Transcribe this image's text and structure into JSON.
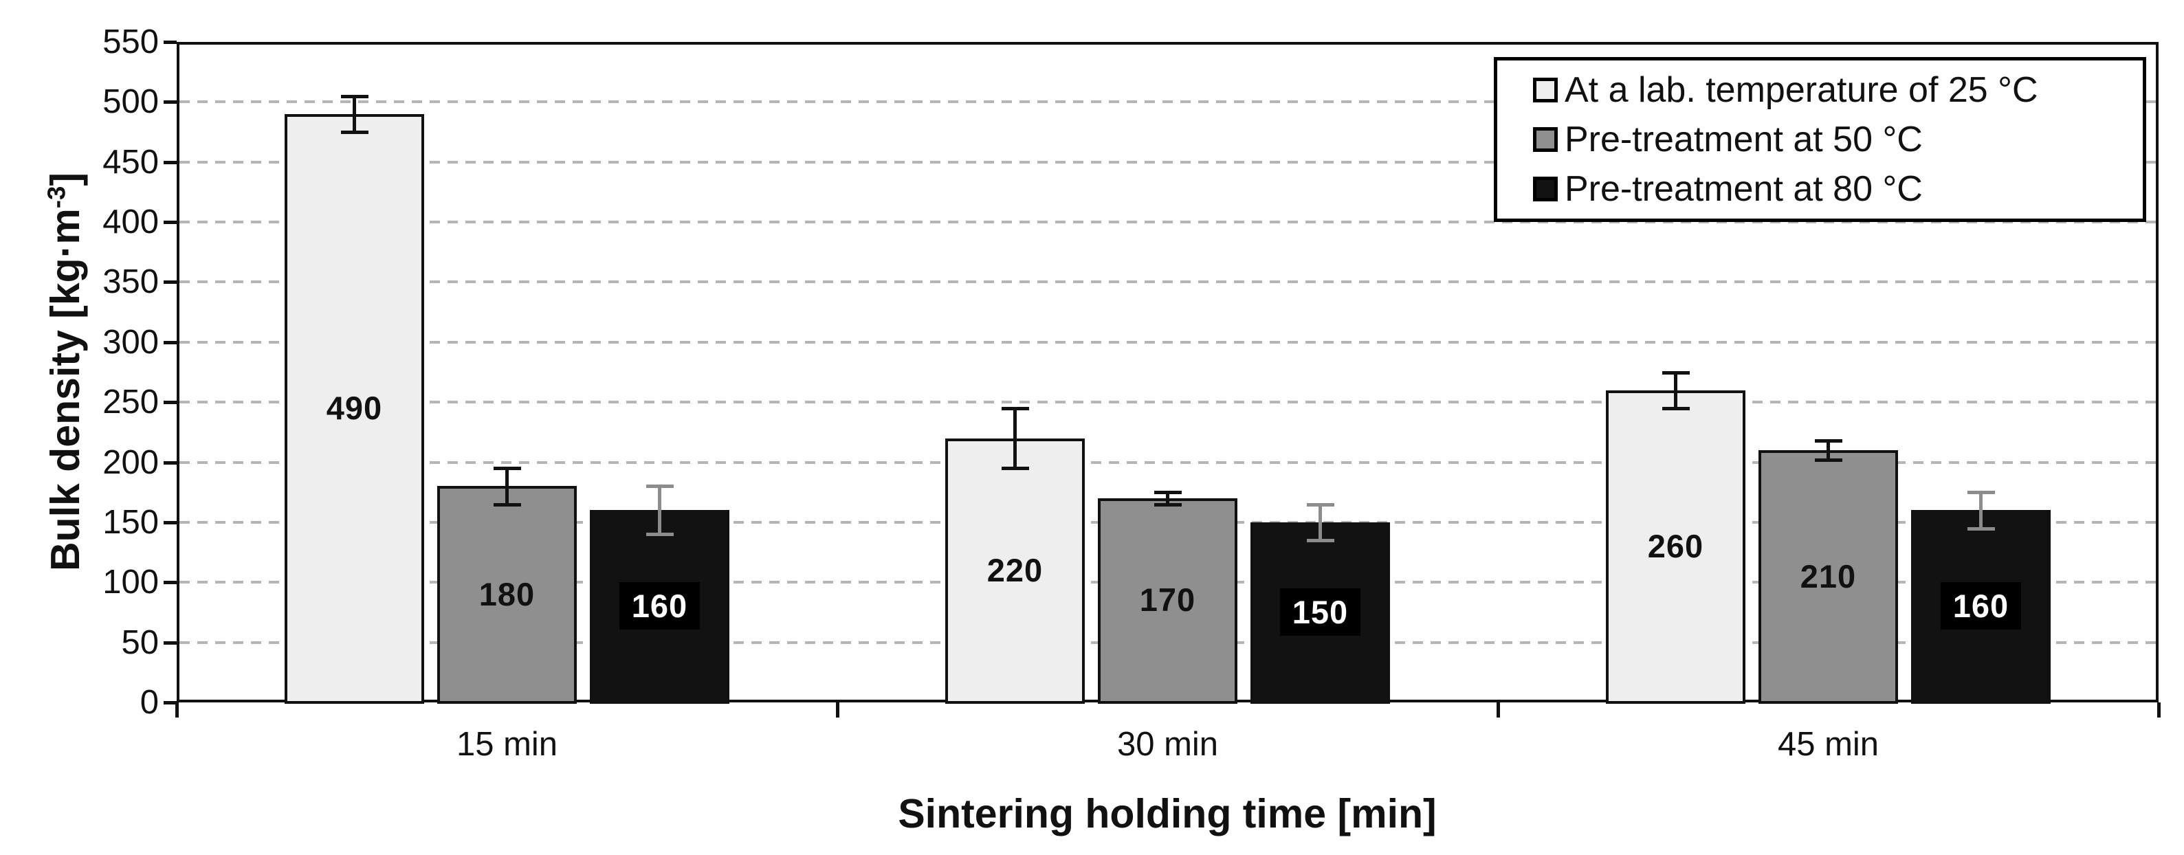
{
  "chart_data": {
    "type": "bar",
    "title": "",
    "categories": [
      "15 min",
      "30 min",
      "45 min"
    ],
    "series": [
      {
        "name": "At a lab. temperature of 25 °C",
        "values": [
          490,
          220,
          260
        ],
        "errors": [
          15,
          25,
          15
        ],
        "bar_color": "#eeeeee",
        "label_style": "dark-text",
        "error_color": "#111111"
      },
      {
        "name": "Pre-treatment at 50 °C",
        "values": [
          180,
          170,
          210
        ],
        "errors": [
          15,
          5,
          8
        ],
        "bar_color": "#8f8f8f",
        "label_style": "dark-text",
        "error_color": "#111111"
      },
      {
        "name": "Pre-treatment at 80 °C",
        "values": [
          160,
          150,
          160
        ],
        "errors": [
          20,
          15,
          15
        ],
        "bar_color": "#121212",
        "label_style": "white-text-black-patch",
        "error_color": "#8c8c8c"
      }
    ],
    "xlabel": "Sintering holding time [min]",
    "ylabel": "Bulk density [kg·m-3]",
    "ylabel_parts": {
      "prefix": "Bulk density [kg·m",
      "sup": "-3",
      "suffix": "]"
    },
    "ylim": [
      0,
      550
    ],
    "ytick_step": 50,
    "grid": "horizontal-dashed",
    "gridline_color": "#b5b5b5",
    "legend_position": "top-right",
    "legend_border_color": "#000000",
    "axis_color": "#111111",
    "background_color": "#ffffff"
  }
}
